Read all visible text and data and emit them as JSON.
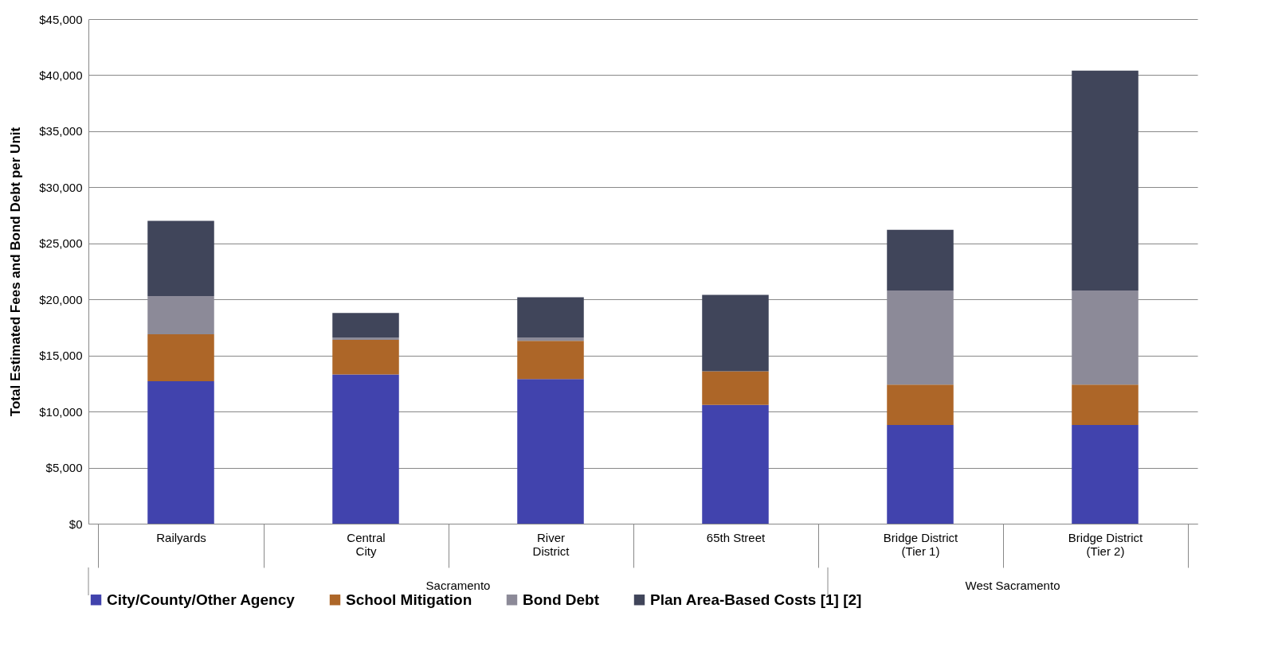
{
  "chart_data": {
    "type": "bar",
    "stacked": true,
    "ylabel": "Total Estimated Fees and Bond Debt per Unit",
    "categories": [
      "Railyards",
      "Central\nCity",
      "River\nDistrict",
      "65th Street",
      "Bridge District\n(Tier 1)",
      "Bridge District\n(Tier 2)"
    ],
    "series": [
      {
        "name": "City/County/Other Agency",
        "color": "#4143ad",
        "values": [
          12700,
          13300,
          12900,
          10600,
          8800,
          8800
        ]
      },
      {
        "name": "School Mitigation",
        "color": "#ad6628",
        "values": [
          4200,
          3100,
          3400,
          3000,
          3600,
          3600
        ]
      },
      {
        "name": "Bond Debt",
        "color": "#8c8a98",
        "values": [
          3400,
          200,
          300,
          0,
          8400,
          8400
        ]
      },
      {
        "name": "Plan Area-Based Costs [1] [2]",
        "color": "#40455a",
        "values": [
          6700,
          2200,
          3600,
          6800,
          5400,
          19600
        ]
      }
    ],
    "ylim": [
      0,
      45000
    ],
    "yticks": [
      {
        "value": 0,
        "label": "$0"
      },
      {
        "value": 5000,
        "label": "$5,000"
      },
      {
        "value": 10000,
        "label": "$10,000"
      },
      {
        "value": 15000,
        "label": "$15,000"
      },
      {
        "value": 20000,
        "label": "$20,000"
      },
      {
        "value": 25000,
        "label": "$25,000"
      },
      {
        "value": 30000,
        "label": "$30,000"
      },
      {
        "value": 35000,
        "label": "$35,000"
      },
      {
        "value": 40000,
        "label": "$40,000"
      },
      {
        "value": 45000,
        "label": "$45,000"
      }
    ],
    "annotations": [
      "Sacramento",
      "West Sacramento"
    ],
    "grid": "y",
    "legend": "bottom"
  }
}
